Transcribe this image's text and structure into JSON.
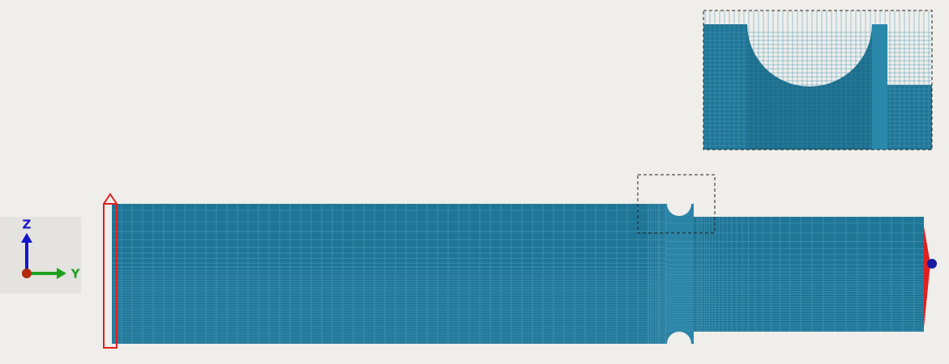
{
  "axes": {
    "z": "Z",
    "y": "Y"
  }
}
